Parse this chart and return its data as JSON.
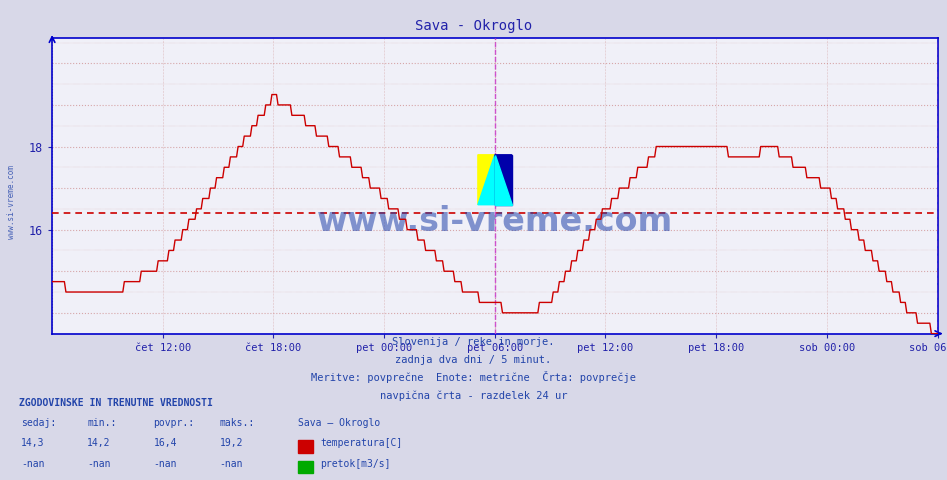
{
  "title": "Sava - Okroglo",
  "title_color": "#2222aa",
  "bg_color": "#d8d8e8",
  "plot_bg_color": "#f0f0f8",
  "line_color": "#cc0000",
  "avg_line_color": "#cc0000",
  "avg_value": 16.4,
  "ymin": 14.0,
  "ymax": 20.5,
  "yticks": [
    16,
    18
  ],
  "x_labels": [
    "čet 12:00",
    "čet 18:00",
    "pet 00:00",
    "pet 06:00",
    "pet 12:00",
    "pet 18:00",
    "sob 00:00",
    "sob 06:00"
  ],
  "x_tick_positions": [
    72,
    144,
    216,
    288,
    360,
    432,
    504,
    576
  ],
  "total_points": 577,
  "watermark": "www.si-vreme.com",
  "watermark_color": "#2244aa",
  "subtitle1": "Slovenija / reke in morje.",
  "subtitle2": "zadnja dva dni / 5 minut.",
  "subtitle3": "Meritve: povprečne  Enote: metrične  Črta: povprečje",
  "subtitle4": "navpična črta - razdelek 24 ur",
  "stats_header": "ZGODOVINSKE IN TRENUTNE VREDNOSTI",
  "col_sedaj": "sedaj:",
  "col_min": "min.:",
  "col_povpr": "povpr.:",
  "col_maks": "maks.:",
  "col_station": "Sava – Okroglo",
  "val_sedaj": "14,3",
  "val_min": "14,2",
  "val_povpr": "16,4",
  "val_maks": "19,2",
  "row2_vals": [
    "-nan",
    "-nan",
    "-nan",
    "-nan"
  ],
  "label_temp": "temperatura[C]",
  "label_pretok": "pretok[m3/s]",
  "vline_color": "#cc44cc",
  "vline_positions": [
    288,
    576
  ],
  "grid_major_color": "#cc8888",
  "grid_minor_color": "#ddbbbb",
  "axis_color": "#0000cc",
  "tick_color": "#2222aa",
  "text_color": "#2244aa",
  "sidebar_text": "www.si-vreme.com"
}
